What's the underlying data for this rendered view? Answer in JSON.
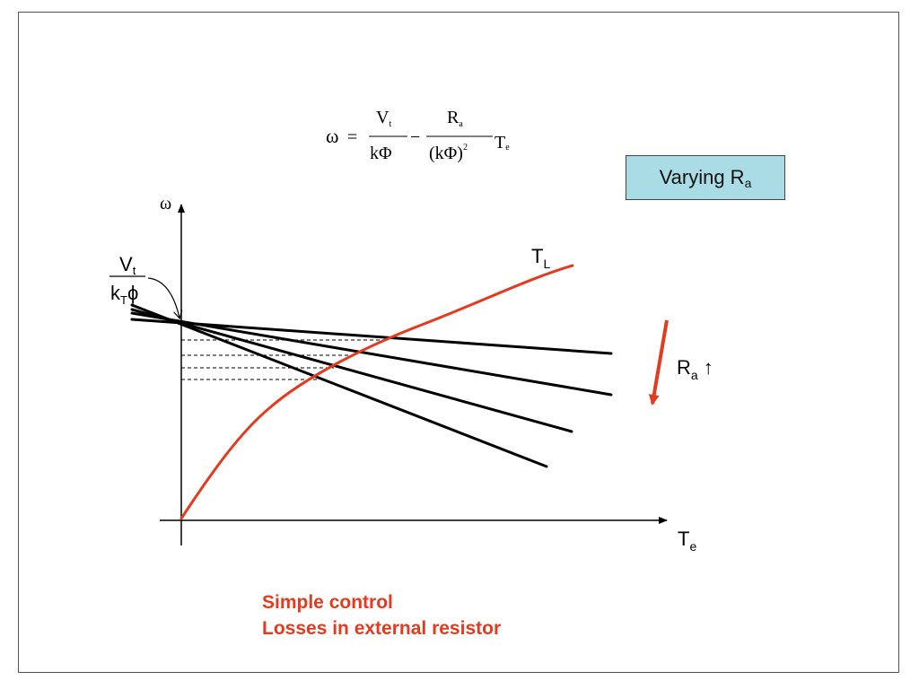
{
  "equation": {
    "lhs": "ω",
    "equals": "=",
    "term1_numerator": "V",
    "term1_numerator_sub": "t",
    "term1_denominator": "kΦ",
    "minus": "−",
    "term2_numerator": "R",
    "term2_numerator_sub": "a",
    "term2_denominator": "(kΦ)",
    "term2_denominator_sup": "2",
    "torque": "T",
    "torque_sub": "e"
  },
  "callout": {
    "label": "Varying R",
    "label_sub": "a"
  },
  "axes": {
    "y_label": "ω",
    "x_label": "T",
    "x_label_sub": "e"
  },
  "intercept_label": {
    "numerator": "V",
    "numerator_sub": "t",
    "denominator_k": "k",
    "denominator_sub": "T",
    "denominator_phi": "ϕ"
  },
  "load_curve": {
    "label": "T",
    "label_sub": "L",
    "color": "#e63a1e"
  },
  "ra_arrow": {
    "label": "R",
    "label_sub": "a",
    "arrow_symbol": "↑",
    "color": "#e63a1e"
  },
  "notes": [
    "Simple control",
    "Losses in external resistor"
  ]
}
